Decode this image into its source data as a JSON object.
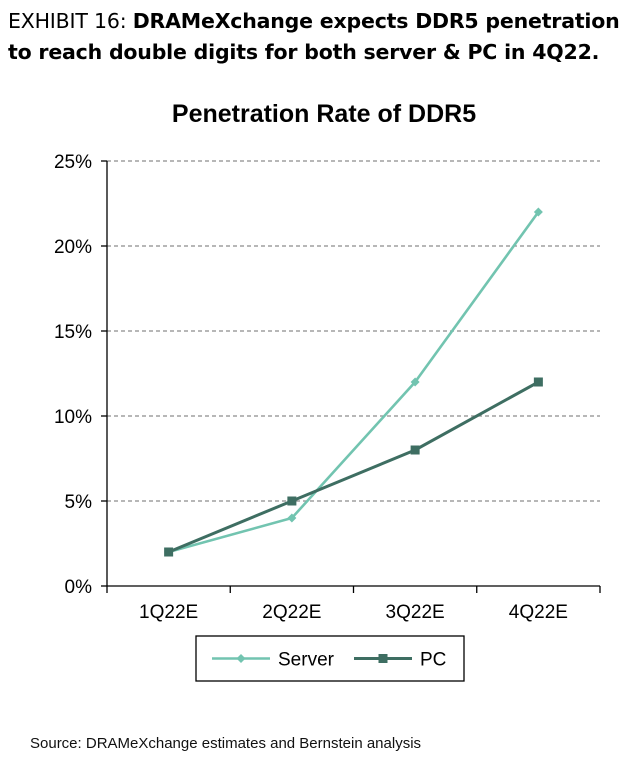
{
  "exhibit": {
    "label": "EXHIBIT 16:",
    "title": "DRAMeXchange expects DDR5 penetration to reach double digits for both server & PC in 4Q22."
  },
  "source": "Source: DRAMeXchange estimates and Bernstein analysis",
  "chart_data": {
    "type": "line",
    "title": "Penetration Rate of DDR5",
    "xlabel": "",
    "ylabel": "",
    "categories": [
      "1Q22E",
      "2Q22E",
      "3Q22E",
      "4Q22E"
    ],
    "series": [
      {
        "name": "Server",
        "values": [
          2,
          4,
          12,
          22
        ],
        "color": "#72c4b0",
        "marker": "diamond"
      },
      {
        "name": "PC",
        "values": [
          2,
          5,
          8,
          12
        ],
        "color": "#3e6e62",
        "marker": "square"
      }
    ],
    "ylim": [
      0,
      25
    ],
    "yticks": [
      "0%",
      "5%",
      "10%",
      "15%",
      "20%",
      "25%"
    ],
    "grid": true,
    "legend": "bottom"
  }
}
